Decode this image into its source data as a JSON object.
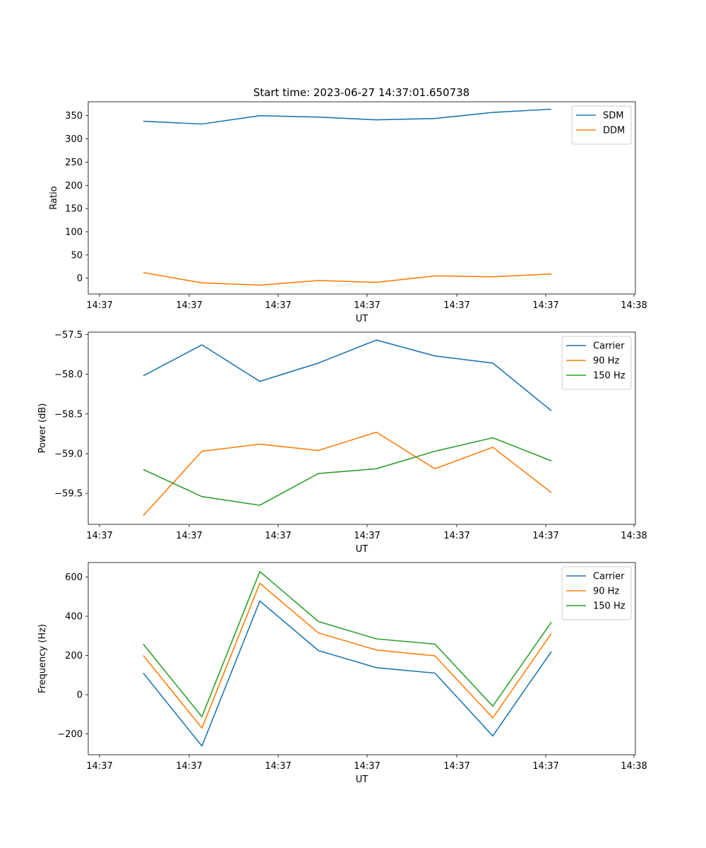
{
  "figure_title": "Start time: 2023-06-27 14:37:01.650738",
  "chart_data": [
    {
      "type": "line",
      "title": "Start time: 2023-06-27 14:37:01.650738",
      "xlabel": "UT",
      "ylabel": "Ratio",
      "x_tick_labels": [
        "14:37",
        "14:37",
        "14:37",
        "14:37",
        "14:37",
        "14:37",
        "14:38"
      ],
      "y_ticks": [
        0,
        50,
        100,
        150,
        200,
        250,
        300,
        350
      ],
      "y_tick_labels": [
        "0",
        "50",
        "100",
        "150",
        "200",
        "250",
        "300",
        "350"
      ],
      "ylim": [
        -34,
        380
      ],
      "grid": false,
      "legend_position": "upper-right",
      "series": [
        {
          "name": "SDM",
          "color": "#1f77b4",
          "values": [
            338,
            332,
            350,
            347,
            341,
            344,
            357,
            364
          ]
        },
        {
          "name": "DDM",
          "color": "#ff7f0e",
          "values": [
            12,
            -10,
            -15,
            -5,
            -9,
            5,
            3,
            9
          ]
        }
      ]
    },
    {
      "type": "line",
      "title": "",
      "xlabel": "UT",
      "ylabel": "Power (dB)",
      "x_tick_labels": [
        "14:37",
        "14:37",
        "14:37",
        "14:37",
        "14:37",
        "14:37",
        "14:38"
      ],
      "y_ticks": [
        -59.5,
        -59.0,
        -58.5,
        -58.0,
        -57.5
      ],
      "y_tick_labels": [
        "−59.5",
        "−59.0",
        "−58.5",
        "−58.0",
        "−57.5"
      ],
      "ylim": [
        -59.89,
        -57.47
      ],
      "grid": false,
      "legend_position": "upper-right",
      "series": [
        {
          "name": "Carrier",
          "color": "#1f77b4",
          "values": [
            -58.02,
            -57.63,
            -58.09,
            -57.86,
            -57.57,
            -57.77,
            -57.86,
            -58.46
          ]
        },
        {
          "name": "90 Hz",
          "color": "#ff7f0e",
          "values": [
            -59.78,
            -58.97,
            -58.88,
            -58.96,
            -58.73,
            -59.19,
            -58.92,
            -59.49
          ]
        },
        {
          "name": "150 Hz",
          "color": "#2ca02c",
          "values": [
            -59.2,
            -59.54,
            -59.65,
            -59.25,
            -59.19,
            -58.97,
            -58.8,
            -59.09
          ]
        }
      ]
    },
    {
      "type": "line",
      "title": "",
      "xlabel": "UT",
      "ylabel": "Frequency (Hz)",
      "x_tick_labels": [
        "14:37",
        "14:37",
        "14:37",
        "14:37",
        "14:37",
        "14:37",
        "14:38"
      ],
      "y_ticks": [
        -200,
        0,
        200,
        400,
        600
      ],
      "y_tick_labels": [
        "−200",
        "0",
        "200",
        "400",
        "600"
      ],
      "ylim": [
        -306,
        674
      ],
      "grid": false,
      "legend_position": "upper-right",
      "series": [
        {
          "name": "Carrier",
          "color": "#1f77b4",
          "values": [
            110,
            -262,
            478,
            225,
            138,
            110,
            -210,
            220
          ]
        },
        {
          "name": "90 Hz",
          "color": "#ff7f0e",
          "values": [
            200,
            -170,
            568,
            315,
            228,
            198,
            -118,
            312
          ]
        },
        {
          "name": "150 Hz",
          "color": "#2ca02c",
          "values": [
            258,
            -112,
            628,
            373,
            285,
            258,
            -58,
            370
          ]
        }
      ]
    }
  ]
}
